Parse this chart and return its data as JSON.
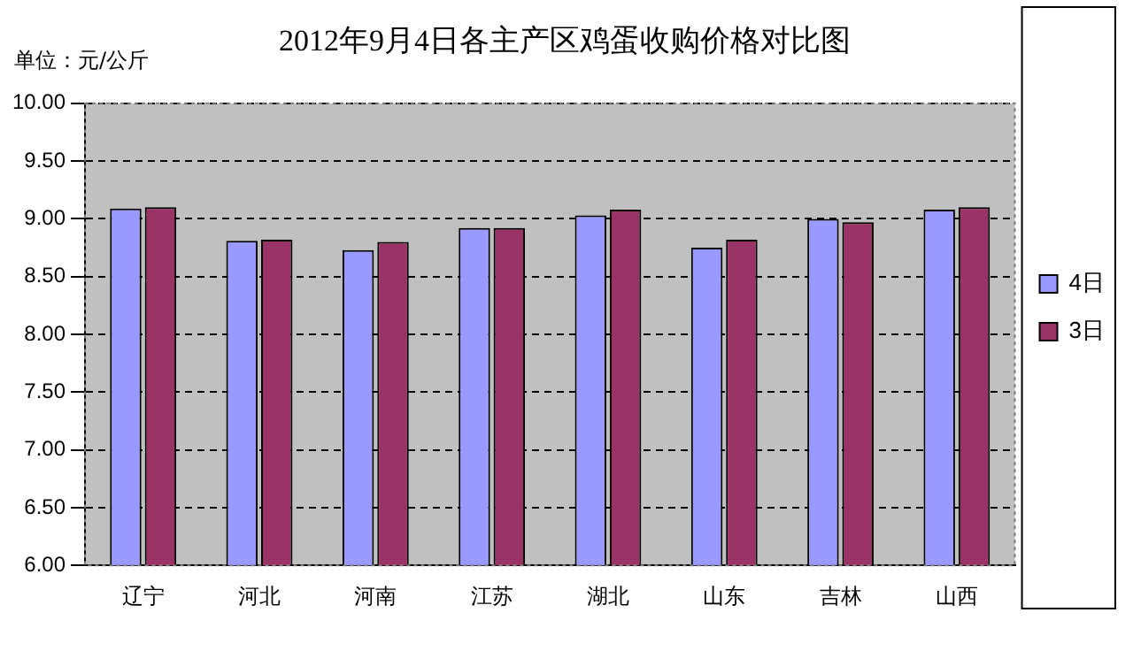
{
  "chart_data": {
    "type": "bar",
    "title": "2012年9月4日各主产区鸡蛋收购价格对比图",
    "ylabel": "单位：元/公斤",
    "categories": [
      "辽宁",
      "河北",
      "河南",
      "江苏",
      "湖北",
      "山东",
      "吉林",
      "山西"
    ],
    "series": [
      {
        "name": "4日",
        "color": "#9999ff",
        "values": [
          9.09,
          8.81,
          8.73,
          8.92,
          9.03,
          8.75,
          9.0,
          9.08
        ]
      },
      {
        "name": "3日",
        "color": "#993366",
        "values": [
          9.1,
          8.82,
          8.8,
          8.92,
          9.08,
          8.82,
          8.97,
          9.1
        ]
      }
    ],
    "ylim": [
      6,
      10
    ],
    "yticks": [
      {
        "value": 6,
        "label": "6.00"
      },
      {
        "value": 6.5,
        "label": "6.50"
      },
      {
        "value": 7,
        "label": "7.00"
      },
      {
        "value": 7.5,
        "label": "7.50"
      },
      {
        "value": 8,
        "label": "8.00"
      },
      {
        "value": 8.5,
        "label": "8.50"
      },
      {
        "value": 9,
        "label": "9.00"
      },
      {
        "value": 9.5,
        "label": "9.50"
      },
      {
        "value": 10,
        "label": "10.00"
      }
    ],
    "grid": "y",
    "legend": "right"
  }
}
